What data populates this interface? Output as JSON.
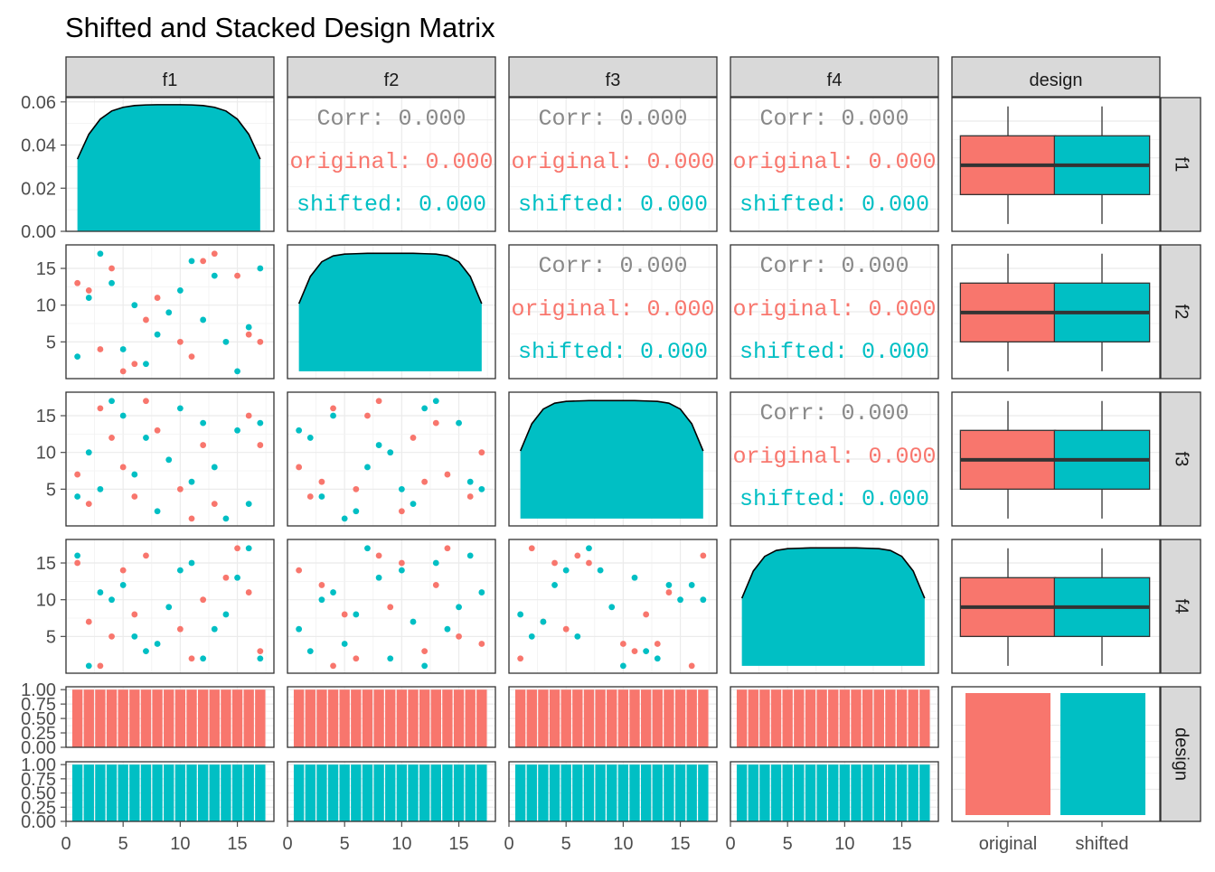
{
  "chart_data": {
    "type": "scatterplot-matrix",
    "title": "Shifted and Stacked Design Matrix",
    "variables": [
      "f1",
      "f2",
      "f3",
      "f4",
      "design"
    ],
    "groups": [
      "original",
      "shifted"
    ],
    "colors": {
      "original": "#F8766D",
      "shifted": "#00BFC4",
      "strip": "#D9D9D9",
      "grid": "#EBEBEB",
      "border": "#333333"
    },
    "x_ticks": [
      0,
      5,
      10,
      15
    ],
    "y_ticks_f1_density": [
      "0.00",
      "0.02",
      "0.04",
      "0.06"
    ],
    "y_ticks_f1_density_values": [
      0,
      0.02,
      0.04,
      0.06
    ],
    "y_ticks_scatter": [
      5,
      10,
      15
    ],
    "y_ticks_design": [
      "0.00",
      "0.25",
      "0.50",
      "0.75",
      "1.00"
    ],
    "y_ticks_design_values": [
      0,
      0.25,
      0.5,
      0.75,
      1
    ],
    "xlim": [
      0,
      18.2
    ],
    "ylim_scatter": [
      0,
      18.2
    ],
    "density_ylim": [
      0,
      0.062
    ],
    "density_x": [
      1,
      2,
      3,
      4,
      5,
      6,
      7,
      8,
      9,
      10,
      11,
      12,
      13,
      14,
      15,
      16,
      17
    ],
    "density_y": [
      0.0335,
      0.045,
      0.052,
      0.0558,
      0.0575,
      0.0583,
      0.0586,
      0.0587,
      0.0587,
      0.0587,
      0.0586,
      0.0583,
      0.0575,
      0.0558,
      0.052,
      0.045,
      0.0335
    ],
    "density_ylim_f2_f4": [
      0,
      18.2
    ],
    "density_scaled_y": [
      10.2,
      13.9,
      15.9,
      16.7,
      16.95,
      17.0,
      17.05,
      17.05,
      17.05,
      17.05,
      17.05,
      17.0,
      16.95,
      16.7,
      15.9,
      13.9,
      10.2
    ],
    "bar_x": [
      1,
      2,
      3,
      4,
      5,
      6,
      7,
      8,
      9,
      10,
      11,
      12,
      13,
      14,
      15,
      16,
      17
    ],
    "bar_ylim": [
      0,
      1.05
    ],
    "correlation_panels": [
      {
        "row": "f1",
        "col": "f2",
        "corr": "Corr: 0.000",
        "original": "original: 0.000",
        "shifted": "shifted: 0.000"
      },
      {
        "row": "f1",
        "col": "f3",
        "corr": "Corr: 0.000",
        "original": "original: 0.000",
        "shifted": "shifted: 0.000"
      },
      {
        "row": "f1",
        "col": "f4",
        "corr": "Corr: 0.000",
        "original": "original: 0.000",
        "shifted": "shifted: 0.000"
      },
      {
        "row": "f2",
        "col": "f3",
        "corr": "Corr: 0.000",
        "original": "original: 0.000",
        "shifted": "shifted: 0.000"
      },
      {
        "row": "f2",
        "col": "f4",
        "corr": "Corr: 0.000",
        "original": "original: 0.000",
        "shifted": "shifted: 0.000"
      },
      {
        "row": "f3",
        "col": "f4",
        "corr": "Corr: 0.000",
        "original": "original: 0.000",
        "shifted": "shifted: 0.000"
      }
    ],
    "boxplot": {
      "original": {
        "min": 1,
        "q1": 5,
        "median": 9,
        "q3": 13,
        "max": 17
      },
      "shifted": {
        "min": 1,
        "q1": 5,
        "median": 9,
        "q3": 13,
        "max": 17
      }
    },
    "scatter": {
      "f2_f1": {
        "original": [
          [
            1,
            13
          ],
          [
            2,
            12
          ],
          [
            3,
            4
          ],
          [
            4,
            15
          ],
          [
            5,
            1
          ],
          [
            6,
            2
          ],
          [
            7,
            8
          ],
          [
            8,
            11
          ],
          [
            10,
            5
          ],
          [
            11,
            3
          ],
          [
            12,
            16
          ],
          [
            13,
            17
          ],
          [
            15,
            14
          ],
          [
            16,
            6
          ],
          [
            17,
            5
          ]
        ],
        "shifted": [
          [
            1,
            3
          ],
          [
            2,
            11
          ],
          [
            3,
            17
          ],
          [
            4,
            13
          ],
          [
            5,
            4
          ],
          [
            6,
            10
          ],
          [
            7,
            2
          ],
          [
            8,
            6
          ],
          [
            9,
            9
          ],
          [
            10,
            12
          ],
          [
            11,
            16
          ],
          [
            12,
            8
          ],
          [
            13,
            14
          ],
          [
            14,
            5
          ],
          [
            15,
            1
          ],
          [
            16,
            7
          ],
          [
            17,
            15
          ]
        ]
      },
      "f3_f1": {
        "original": [
          [
            1,
            7
          ],
          [
            2,
            3
          ],
          [
            3,
            16
          ],
          [
            4,
            12
          ],
          [
            5,
            8
          ],
          [
            6,
            4
          ],
          [
            7,
            17
          ],
          [
            8,
            13
          ],
          [
            10,
            5
          ],
          [
            11,
            1
          ],
          [
            12,
            11
          ],
          [
            13,
            3
          ],
          [
            16,
            15
          ],
          [
            17,
            11
          ]
        ],
        "shifted": [
          [
            1,
            4
          ],
          [
            2,
            10
          ],
          [
            3,
            5
          ],
          [
            4,
            17
          ],
          [
            5,
            15
          ],
          [
            6,
            7
          ],
          [
            7,
            12
          ],
          [
            8,
            2
          ],
          [
            9,
            9
          ],
          [
            10,
            16
          ],
          [
            11,
            6
          ],
          [
            12,
            14
          ],
          [
            13,
            8
          ],
          [
            14,
            1
          ],
          [
            15,
            13
          ],
          [
            16,
            3
          ],
          [
            17,
            14
          ]
        ]
      },
      "f3_f2": {
        "original": [
          [
            1,
            8
          ],
          [
            2,
            4
          ],
          [
            3,
            6
          ],
          [
            4,
            16
          ],
          [
            6,
            5
          ],
          [
            7,
            15
          ],
          [
            8,
            17
          ],
          [
            10,
            2
          ],
          [
            11,
            12
          ],
          [
            12,
            6
          ],
          [
            13,
            14
          ],
          [
            14,
            7
          ],
          [
            16,
            4
          ],
          [
            17,
            10
          ]
        ],
        "shifted": [
          [
            1,
            13
          ],
          [
            2,
            12
          ],
          [
            3,
            4
          ],
          [
            4,
            15
          ],
          [
            5,
            1
          ],
          [
            6,
            2
          ],
          [
            7,
            8
          ],
          [
            8,
            11
          ],
          [
            9,
            10
          ],
          [
            10,
            5
          ],
          [
            11,
            3
          ],
          [
            12,
            16
          ],
          [
            13,
            17
          ],
          [
            15,
            14
          ],
          [
            16,
            6
          ],
          [
            17,
            5
          ]
        ]
      },
      "f4_f1": {
        "original": [
          [
            1,
            15
          ],
          [
            2,
            7
          ],
          [
            3,
            1
          ],
          [
            4,
            5
          ],
          [
            5,
            14
          ],
          [
            6,
            8
          ],
          [
            7,
            16
          ],
          [
            10,
            6
          ],
          [
            11,
            2
          ],
          [
            12,
            10
          ],
          [
            14,
            13
          ],
          [
            15,
            17
          ],
          [
            16,
            11
          ],
          [
            17,
            3
          ]
        ],
        "shifted": [
          [
            1,
            16
          ],
          [
            2,
            1
          ],
          [
            3,
            11
          ],
          [
            4,
            10
          ],
          [
            5,
            12
          ],
          [
            6,
            5
          ],
          [
            7,
            3
          ],
          [
            8,
            4
          ],
          [
            9,
            9
          ],
          [
            10,
            14
          ],
          [
            11,
            15
          ],
          [
            12,
            2
          ],
          [
            13,
            6
          ],
          [
            14,
            8
          ],
          [
            15,
            13
          ],
          [
            16,
            17
          ],
          [
            17,
            2
          ]
        ]
      },
      "f4_f2": {
        "original": [
          [
            1,
            14
          ],
          [
            3,
            12
          ],
          [
            4,
            1
          ],
          [
            5,
            8
          ],
          [
            6,
            2
          ],
          [
            8,
            16
          ],
          [
            9,
            9
          ],
          [
            10,
            15
          ],
          [
            12,
            3
          ],
          [
            13,
            12
          ],
          [
            14,
            17
          ],
          [
            15,
            5
          ],
          [
            17,
            4
          ]
        ],
        "shifted": [
          [
            1,
            6
          ],
          [
            2,
            3
          ],
          [
            3,
            10
          ],
          [
            4,
            11
          ],
          [
            5,
            4
          ],
          [
            6,
            8
          ],
          [
            7,
            17
          ],
          [
            8,
            13
          ],
          [
            9,
            2
          ],
          [
            10,
            14
          ],
          [
            11,
            7
          ],
          [
            12,
            1
          ],
          [
            13,
            15
          ],
          [
            14,
            6
          ],
          [
            15,
            9
          ],
          [
            16,
            16
          ],
          [
            17,
            11
          ]
        ]
      },
      "f4_f3": {
        "original": [
          [
            1,
            2
          ],
          [
            2,
            17
          ],
          [
            3,
            7
          ],
          [
            4,
            15
          ],
          [
            5,
            6
          ],
          [
            6,
            16
          ],
          [
            7,
            15
          ],
          [
            10,
            4
          ],
          [
            11,
            3
          ],
          [
            12,
            8
          ],
          [
            13,
            4
          ],
          [
            14,
            11
          ],
          [
            16,
            1
          ],
          [
            17,
            16
          ]
        ],
        "shifted": [
          [
            1,
            8
          ],
          [
            2,
            5
          ],
          [
            3,
            7
          ],
          [
            4,
            12
          ],
          [
            5,
            14
          ],
          [
            6,
            5
          ],
          [
            7,
            17
          ],
          [
            8,
            14
          ],
          [
            9,
            9
          ],
          [
            10,
            1
          ],
          [
            11,
            13
          ],
          [
            12,
            3
          ],
          [
            13,
            2
          ],
          [
            14,
            12
          ],
          [
            15,
            10
          ],
          [
            16,
            12
          ],
          [
            17,
            10
          ]
        ]
      }
    },
    "design_legend_labels": [
      "original",
      "shifted"
    ],
    "row_strips": [
      "f1",
      "f2",
      "f3",
      "f4",
      "design"
    ],
    "col_strips": [
      "f1",
      "f2",
      "f3",
      "f4",
      "design"
    ]
  }
}
